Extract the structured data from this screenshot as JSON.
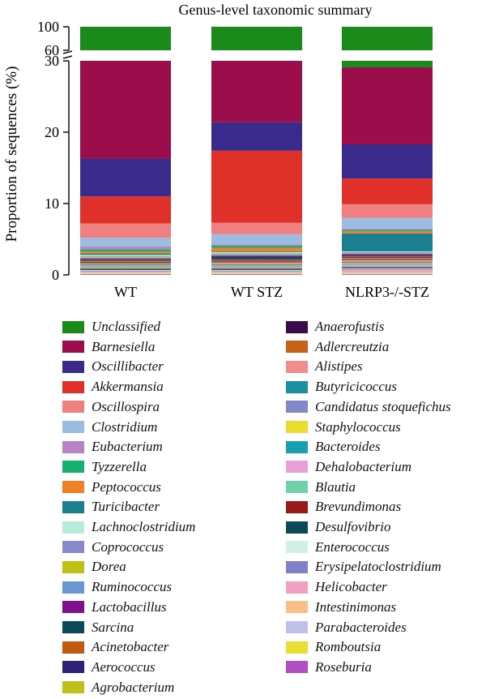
{
  "chart_data": {
    "type": "bar",
    "stacked": true,
    "title": "Genus-level taxonomic summary",
    "ylabel": "Proportion of sequences (%)",
    "xlabel": "",
    "ylim": [
      0,
      100
    ],
    "y_axis_break": {
      "lower": [
        0,
        30
      ],
      "upper": [
        60,
        100
      ]
    },
    "yticks_lower": [
      "0",
      "10",
      "20",
      "30"
    ],
    "yticks_upper": [
      "60",
      "100"
    ],
    "categories": [
      "WT",
      "WT STZ",
      "NLRP3-/-STZ"
    ],
    "series": [
      {
        "name": "Unclassified",
        "color": "#1a8a1a",
        "values": [
          70.0,
          79.0,
          70.8
        ]
      },
      {
        "name": "Barnesiella",
        "color": "#9b0d4b",
        "values": [
          14.7,
          9.0,
          10.8
        ]
      },
      {
        "name": "Oscillibacter",
        "color": "#3a2a8c",
        "values": [
          5.3,
          4.0,
          4.8
        ]
      },
      {
        "name": "Akkermansia",
        "color": "#e0302a",
        "values": [
          3.8,
          10.1,
          3.6
        ]
      },
      {
        "name": "Oscillospira",
        "color": "#f08080",
        "values": [
          2.0,
          1.6,
          1.9
        ]
      },
      {
        "name": "Clostridium",
        "color": "#9bbce0",
        "values": [
          1.2,
          1.4,
          1.5
        ]
      },
      {
        "name": "Eubacterium",
        "color": "#b784c8",
        "values": [
          0.4,
          0.2,
          0.2
        ]
      },
      {
        "name": "Tyzzerella",
        "color": "#18b070",
        "values": [
          0.3,
          0.3,
          0.2
        ]
      },
      {
        "name": "Peptococcus",
        "color": "#f08028",
        "values": [
          0.3,
          0.5,
          0.3
        ]
      },
      {
        "name": "Turicibacter",
        "color": "#1a8090",
        "values": [
          0.2,
          0.1,
          2.5
        ]
      },
      {
        "name": "Lachnoclostridium",
        "color": "#b8ecd8",
        "values": [
          0.2,
          0.2,
          0.1
        ]
      },
      {
        "name": "Coprococcus",
        "color": "#8888cc",
        "values": [
          0.1,
          0.1,
          0.1
        ]
      },
      {
        "name": "Dorea",
        "color": "#c0c018",
        "values": [
          0.1,
          0.1,
          0.1
        ]
      },
      {
        "name": "Ruminococcus",
        "color": "#6898d0",
        "values": [
          0.1,
          0.1,
          0.1
        ]
      },
      {
        "name": "Lactobacillus",
        "color": "#80108c",
        "values": [
          0.1,
          0.2,
          0.2
        ]
      },
      {
        "name": "Sarcina",
        "color": "#0c4a5a",
        "values": [
          0.1,
          0.3,
          0.1
        ]
      },
      {
        "name": "Acinetobacter",
        "color": "#c05a10",
        "values": [
          0.1,
          0.1,
          0.1
        ]
      },
      {
        "name": "Aerococcus",
        "color": "#30207a",
        "values": [
          0.1,
          0.1,
          0.1
        ]
      },
      {
        "name": "Agrobacterium",
        "color": "#c0c01a",
        "values": [
          0.1,
          0.1,
          0.1
        ]
      },
      {
        "name": "Anaerofustis",
        "color": "#3a0a4a",
        "values": [
          0.1,
          0.1,
          0.1
        ]
      },
      {
        "name": "Adlercreutzia",
        "color": "#c86018",
        "values": [
          0.1,
          0.1,
          0.1
        ]
      },
      {
        "name": "Alistipes",
        "color": "#f08c8c",
        "values": [
          0.1,
          0.2,
          0.3
        ]
      },
      {
        "name": "Butyricicoccus",
        "color": "#1a90a0",
        "values": [
          0.1,
          0.1,
          0.1
        ]
      },
      {
        "name": "Candidatus stoquefichus",
        "color": "#8088c8",
        "values": [
          0.1,
          0.1,
          0.1
        ]
      },
      {
        "name": "Staphylococcus",
        "color": "#e8dc30",
        "values": [
          0.1,
          0.1,
          0.1
        ]
      },
      {
        "name": "Bacteroides",
        "color": "#18a0b0",
        "values": [
          0.1,
          0.1,
          0.1
        ]
      },
      {
        "name": "Dehalobacterium",
        "color": "#e8a0d8",
        "values": [
          0.1,
          0.1,
          0.2
        ]
      },
      {
        "name": "Blautia",
        "color": "#70d0a8",
        "values": [
          0.1,
          0.1,
          0.1
        ]
      },
      {
        "name": "Brevundimonas",
        "color": "#9a1a1a",
        "values": [
          0.1,
          0.1,
          0.1
        ]
      },
      {
        "name": "Desulfovibrio",
        "color": "#0c4a5a",
        "values": [
          0.1,
          0.1,
          0.1
        ]
      },
      {
        "name": "Enterococcus",
        "color": "#d0f0e8",
        "values": [
          0.1,
          0.1,
          0.1
        ]
      },
      {
        "name": "Erysipelatoclostridium",
        "color": "#8080c8",
        "values": [
          0.1,
          0.1,
          0.1
        ]
      },
      {
        "name": "Helicobacter",
        "color": "#f0a0c0",
        "values": [
          0.1,
          0.1,
          0.3
        ]
      },
      {
        "name": "Intestinimonas",
        "color": "#f8c088",
        "values": [
          0.1,
          0.1,
          0.1
        ]
      },
      {
        "name": "Parabacteroides",
        "color": "#c0c0e8",
        "values": [
          0.1,
          0.1,
          0.1
        ]
      },
      {
        "name": "Romboutsia",
        "color": "#e8e030",
        "values": [
          0.1,
          0.1,
          0.1
        ]
      },
      {
        "name": "Roseburia",
        "color": "#b050c0",
        "values": [
          0.1,
          0.1,
          0.1
        ]
      }
    ],
    "legend_placement": "bottom, two columns"
  }
}
